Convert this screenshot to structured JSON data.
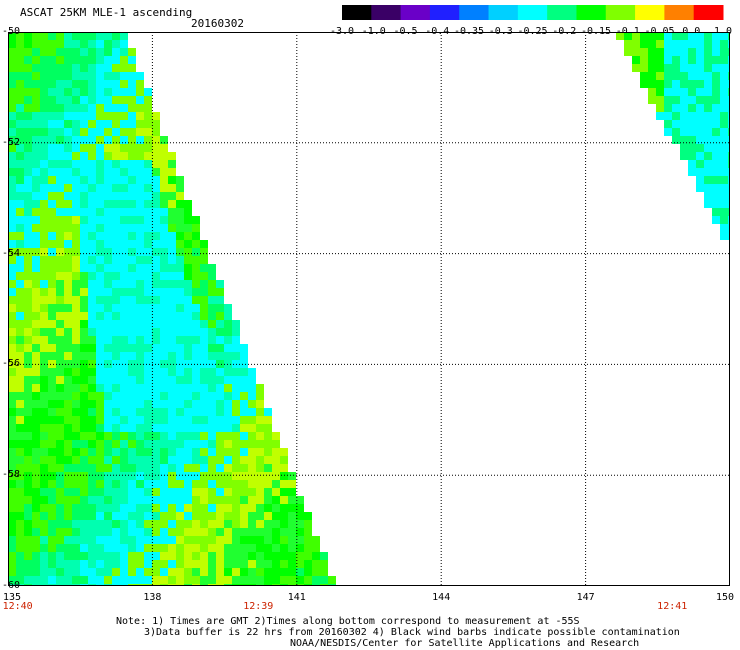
{
  "title": "ASCAT 25KM MLE-1 ascending",
  "date": "20160302",
  "colorbar": {
    "ticks": [
      "-3.0",
      "-1.0",
      "-0.5",
      "-0.4",
      "-0.35",
      "-0.3",
      "-0.25",
      "-0.2",
      "-0.15",
      "-0.1",
      "-0.05",
      "0.0",
      "1.0"
    ],
    "colors": [
      "#000000",
      "#3a0066",
      "#6a00c8",
      "#2020ff",
      "#0080ff",
      "#00d0ff",
      "#00ffff",
      "#00ff80",
      "#00ff00",
      "#80ff00",
      "#ffff00",
      "#ff8000",
      "#ff0000"
    ]
  },
  "map": {
    "lat_ticks": [
      "-50",
      "-52",
      "-54",
      "-56",
      "-58",
      "-60"
    ],
    "lon_ticks": [
      "135",
      "138",
      "141",
      "144",
      "147",
      "150"
    ],
    "lat_range": [
      -60,
      -50
    ],
    "lon_range": [
      135,
      150
    ],
    "time_labels": [
      {
        "text": "12:40",
        "lon": 135.2
      },
      {
        "text": "12:39",
        "lon": 140.2
      },
      {
        "text": "12:41",
        "lon": 148.8
      }
    ],
    "swath_colors": [
      "#00ff00",
      "#40ff00",
      "#00ff60",
      "#00ffb0",
      "#00ffff",
      "#80ff00",
      "#c0ff00",
      "#20ff30"
    ]
  },
  "notes": [
    "Note: 1) Times are GMT 2)Times along bottom correspond to measurement at -55S",
    "3)Data buffer is 22 hrs from 20160302 4) Black wind barbs indicate possible contamination",
    "NOAA/NESDIS/Center for Satellite Applications and Research"
  ]
}
